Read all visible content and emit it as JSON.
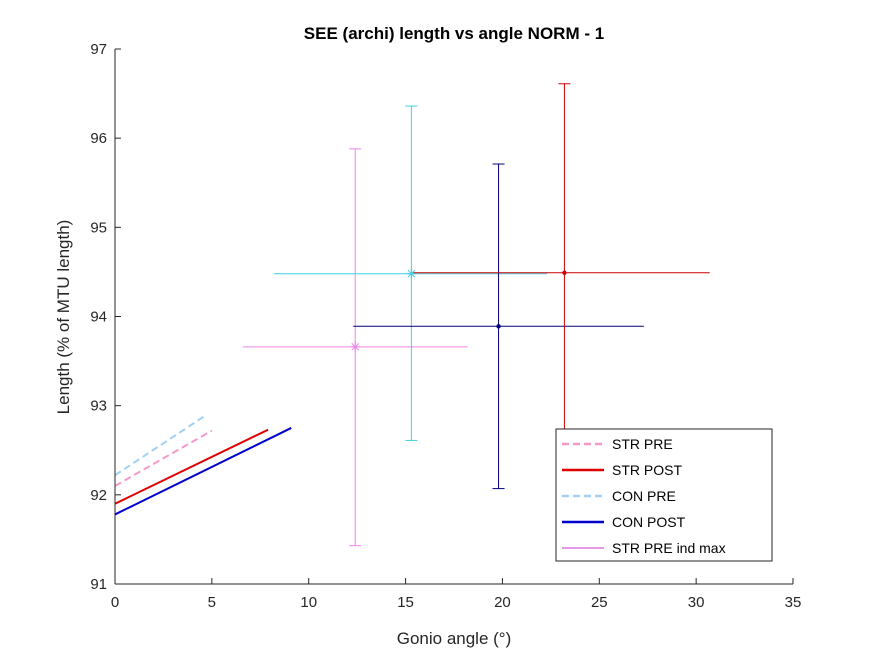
{
  "chart_data": {
    "type": "line",
    "title": "SEE (archi) length vs angle NORM - 1",
    "xlabel": "Gonio angle (°)",
    "ylabel": "Length (% of MTU length)",
    "xlim": [
      0,
      35
    ],
    "ylim": [
      91,
      97
    ],
    "xticks": [
      0,
      5,
      10,
      15,
      20,
      25,
      30,
      35
    ],
    "yticks": [
      91,
      92,
      93,
      94,
      95,
      96,
      97
    ],
    "grid": false,
    "legend_position": "bottom-right",
    "series": [
      {
        "name": "STR PRE",
        "color": "#f59ac8",
        "style": "dashed",
        "width": 2,
        "x": [
          0,
          5
        ],
        "y": [
          92.1,
          92.72
        ]
      },
      {
        "name": "STR POST",
        "color": "#e00000",
        "style": "solid",
        "width": 2,
        "x": [
          0,
          7.9
        ],
        "y": [
          91.9,
          92.73
        ]
      },
      {
        "name": "CON PRE",
        "color": "#a2d0f4",
        "style": "dashed",
        "width": 2,
        "x": [
          0,
          4.6
        ],
        "y": [
          92.22,
          92.88
        ]
      },
      {
        "name": "CON POST",
        "color": "#0000cc",
        "style": "solid",
        "width": 2,
        "x": [
          0,
          9.1
        ],
        "y": [
          91.78,
          92.75
        ]
      },
      {
        "name": "STR PRE ind max",
        "color": "#cc33cc",
        "style": "solid",
        "width": 1,
        "x": [
          12.4
        ],
        "y": [
          93.66
        ]
      }
    ],
    "error_points": [
      {
        "color": "#ee82ee",
        "marker": "*",
        "x": 12.4,
        "y": 93.66,
        "xerr": [
          6.6,
          18.2
        ],
        "yerr": [
          91.43,
          95.88
        ]
      },
      {
        "color": "#3fd0e0",
        "marker": "*",
        "x": 15.3,
        "y": 94.48,
        "xerr": [
          8.2,
          22.3
        ],
        "yerr": [
          92.61,
          96.36
        ]
      },
      {
        "color": "#000080",
        "marker": ".",
        "x": 19.8,
        "y": 93.89,
        "xerr": [
          12.3,
          27.3
        ],
        "yerr": [
          92.07,
          95.71
        ]
      },
      {
        "color": "#cc0000",
        "marker": ".",
        "x": 23.2,
        "y": 94.49,
        "xerr": [
          15.4,
          30.7
        ],
        "yerr": [
          92.36,
          96.61
        ]
      }
    ]
  }
}
